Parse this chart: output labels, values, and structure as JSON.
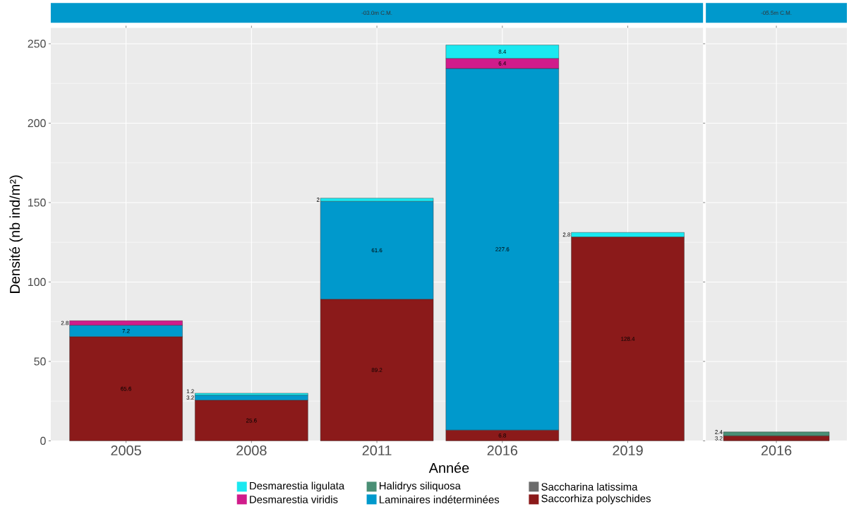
{
  "chart_data": [
    {
      "type": "bar",
      "stacked": true,
      "title": "-03.0m C.M.",
      "xlabel": "Année",
      "ylabel": "Densité (nb ind/m²)",
      "categories": [
        "2005",
        "2008",
        "2011",
        "2016",
        "2019"
      ],
      "ylim": [
        0,
        260
      ],
      "yticks": [
        0,
        50,
        100,
        150,
        200,
        250
      ],
      "grid": true,
      "legend": "bottom",
      "data_labels": true,
      "series": [
        {
          "name": "Saccorhiza polyschides",
          "color": "#8b1a1a",
          "values": [
            65.6,
            25.6,
            89.2,
            6.8,
            128.4
          ]
        },
        {
          "name": "Saccharina latissima",
          "color": "#6b6b6b",
          "values": [
            null,
            null,
            null,
            null,
            null
          ]
        },
        {
          "name": "Laminaires indéterminées",
          "color": "#0099cc",
          "values": [
            7.2,
            3.2,
            61.6,
            227.6,
            null
          ]
        },
        {
          "name": "Halidrys siliquosa",
          "color": "#4a8f75",
          "values": [
            null,
            null,
            null,
            null,
            null
          ]
        },
        {
          "name": "Desmarestia viridis",
          "color": "#d01c8b",
          "values": [
            2.8,
            null,
            null,
            6.4,
            null
          ]
        },
        {
          "name": "Desmarestia ligulata",
          "color": "#1ae8f0",
          "values": [
            null,
            1.2,
            2,
            8.4,
            2.8
          ]
        }
      ]
    },
    {
      "type": "bar",
      "stacked": true,
      "title": "-05.5m C.M.",
      "categories": [
        "2016"
      ],
      "ylim": [
        0,
        260
      ],
      "yticks": [
        0,
        50,
        100,
        150,
        200,
        250
      ],
      "grid": true,
      "tick_labels": "x",
      "data_labels": true,
      "series": [
        {
          "color": "#8b1a1a",
          "values": [
            3.2
          ]
        },
        {
          "color": "#4a8f75",
          "values": [
            2.4
          ]
        }
      ]
    }
  ]
}
